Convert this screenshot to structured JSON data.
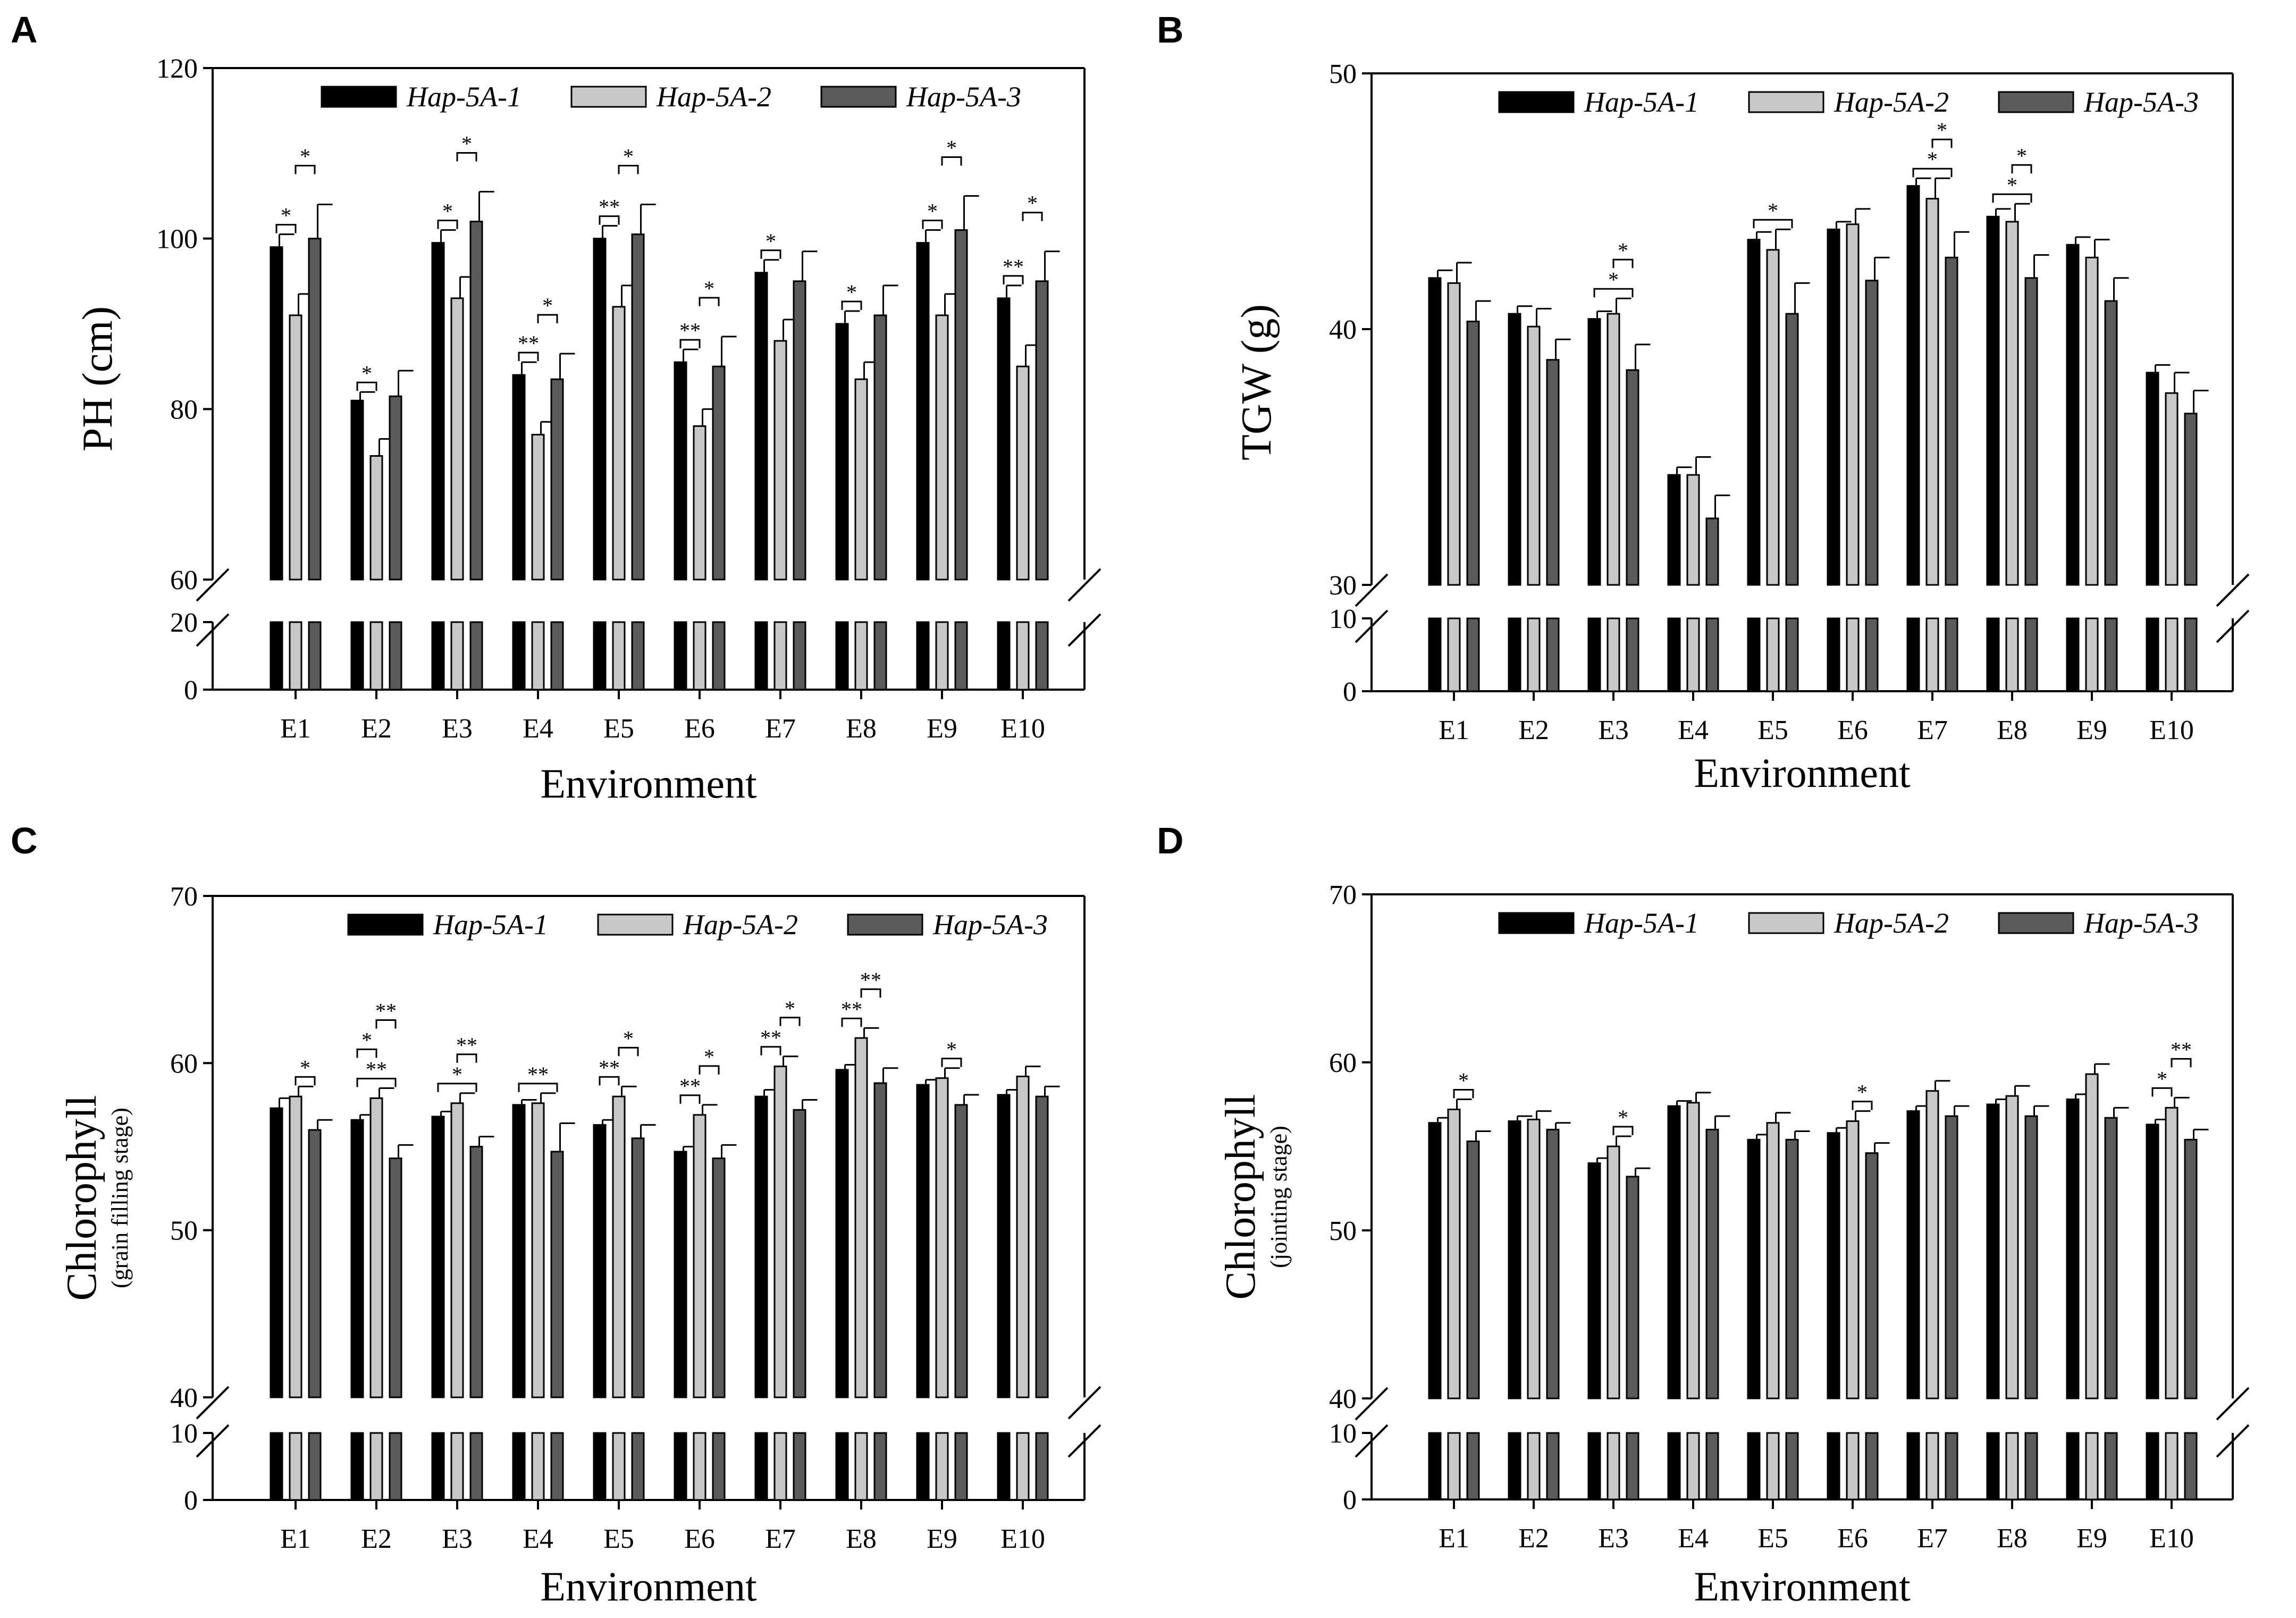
{
  "colors": {
    "hap1": "#000000",
    "hap2": "#c8c8c8",
    "hap3": "#5a5a5a"
  },
  "chart_data": [
    {
      "panel": "A",
      "type": "bar",
      "ylabel": "PH (cm)",
      "ylabel_sub": "",
      "xlabel": "Environment",
      "lower_ticks": [
        "0",
        "20"
      ],
      "upper_ticks": [
        "60",
        "80",
        "100",
        "120"
      ],
      "break_value": 60,
      "break_low": 20,
      "ylim": [
        60,
        120
      ],
      "tick_step": 20,
      "legend": [
        "Hap-5A-1",
        "Hap-5A-2",
        "Hap-5A-3"
      ],
      "legend_pos": "top-right",
      "categories": [
        "E1",
        "E2",
        "E3",
        "E4",
        "E5",
        "E6",
        "E7",
        "E8",
        "E9",
        "E10"
      ],
      "series": [
        {
          "name": "Hap-5A-1",
          "values": [
            99,
            81,
            99.5,
            84,
            100,
            85.5,
            96,
            90,
            99.5,
            93
          ],
          "errors": [
            1.5,
            1,
            1.5,
            1.5,
            1.5,
            1.5,
            1.5,
            1.5,
            1.5,
            1.5
          ]
        },
        {
          "name": "Hap-5A-2",
          "values": [
            91,
            74.5,
            93,
            77,
            92,
            78,
            88,
            83.5,
            91,
            85
          ],
          "errors": [
            2.5,
            2,
            2.5,
            1.5,
            2.5,
            2,
            2.5,
            2,
            2.5,
            2.5
          ]
        },
        {
          "name": "Hap-5A-3",
          "values": [
            100,
            81.5,
            102,
            83.5,
            100.5,
            85,
            95,
            91,
            101,
            95
          ],
          "errors": [
            4,
            3,
            3.5,
            3,
            3.5,
            3.5,
            3.5,
            3.5,
            4,
            3.5
          ]
        }
      ],
      "sig": [
        {
          "cat": 0,
          "a": 0,
          "b": 1,
          "label": "*"
        },
        {
          "cat": 0,
          "a": 1,
          "b": 2,
          "label": "*"
        },
        {
          "cat": 1,
          "a": 0,
          "b": 1,
          "label": "*"
        },
        {
          "cat": 2,
          "a": 0,
          "b": 1,
          "label": "*"
        },
        {
          "cat": 2,
          "a": 1,
          "b": 2,
          "label": "*"
        },
        {
          "cat": 3,
          "a": 0,
          "b": 1,
          "label": "**"
        },
        {
          "cat": 3,
          "a": 1,
          "b": 2,
          "label": "*"
        },
        {
          "cat": 4,
          "a": 0,
          "b": 1,
          "label": "**"
        },
        {
          "cat": 4,
          "a": 1,
          "b": 2,
          "label": "*"
        },
        {
          "cat": 5,
          "a": 0,
          "b": 1,
          "label": "**"
        },
        {
          "cat": 5,
          "a": 1,
          "b": 2,
          "label": "*"
        },
        {
          "cat": 6,
          "a": 0,
          "b": 1,
          "label": "*"
        },
        {
          "cat": 7,
          "a": 0,
          "b": 1,
          "label": "*"
        },
        {
          "cat": 8,
          "a": 0,
          "b": 1,
          "label": "*"
        },
        {
          "cat": 8,
          "a": 1,
          "b": 2,
          "label": "*"
        },
        {
          "cat": 9,
          "a": 0,
          "b": 1,
          "label": "**"
        },
        {
          "cat": 9,
          "a": 1,
          "b": 2,
          "label": "*"
        }
      ]
    },
    {
      "panel": "B",
      "type": "bar",
      "ylabel": "TGW (g)",
      "ylabel_sub": "",
      "xlabel": "Environment",
      "lower_ticks": [
        "0",
        "10"
      ],
      "upper_ticks": [
        "30",
        "40",
        "50"
      ],
      "break_value": 30,
      "break_low": 10,
      "ylim": [
        30,
        50
      ],
      "tick_step": 10,
      "legend": [
        "Hap-5A-1",
        "Hap-5A-2",
        "Hap-5A-3"
      ],
      "legend_pos": "top-right",
      "categories": [
        "E1",
        "E2",
        "E3",
        "E4",
        "E5",
        "E6",
        "E7",
        "E8",
        "E9",
        "E10"
      ],
      "series": [
        {
          "name": "Hap-5A-1",
          "values": [
            42,
            40.6,
            40.4,
            34.3,
            43.5,
            43.9,
            45.6,
            44.4,
            43.3,
            38.3
          ],
          "errors": [
            0.3,
            0.3,
            0.3,
            0.3,
            0.3,
            0.3,
            0.3,
            0.3,
            0.3,
            0.3
          ]
        },
        {
          "name": "Hap-5A-2",
          "values": [
            41.8,
            40.1,
            40.6,
            34.3,
            43.1,
            44.1,
            45.1,
            44.2,
            42.8,
            37.5
          ],
          "errors": [
            0.8,
            0.7,
            0.6,
            0.7,
            0.8,
            0.6,
            0.8,
            0.7,
            0.7,
            0.8
          ]
        },
        {
          "name": "Hap-5A-3",
          "values": [
            40.3,
            38.8,
            38.4,
            32.6,
            40.6,
            41.9,
            42.8,
            42,
            41.1,
            36.7
          ],
          "errors": [
            0.8,
            0.8,
            1,
            0.9,
            1.2,
            0.9,
            1,
            0.9,
            0.9,
            0.9
          ]
        }
      ],
      "sig": [
        {
          "cat": 2,
          "a": 0,
          "b": 2,
          "label": "*"
        },
        {
          "cat": 2,
          "a": 1,
          "b": 2,
          "label": "*"
        },
        {
          "cat": 4,
          "a": 0,
          "b": 2,
          "label": "*"
        },
        {
          "cat": 6,
          "a": 0,
          "b": 2,
          "label": "*"
        },
        {
          "cat": 6,
          "a": 1,
          "b": 2,
          "label": "*"
        },
        {
          "cat": 7,
          "a": 0,
          "b": 2,
          "label": "*"
        },
        {
          "cat": 7,
          "a": 1,
          "b": 2,
          "label": "*"
        }
      ]
    },
    {
      "panel": "C",
      "type": "bar",
      "ylabel": "Chlorophyll",
      "ylabel_sub": "(grain filling stage)",
      "xlabel": "Environment",
      "lower_ticks": [
        "0",
        "10"
      ],
      "upper_ticks": [
        "40",
        "50",
        "60",
        "70"
      ],
      "break_value": 40,
      "break_low": 10,
      "ylim": [
        40,
        70
      ],
      "tick_step": 10,
      "legend": [
        "Hap-5A-1",
        "Hap-5A-2",
        "Hap-5A-3"
      ],
      "legend_pos": "top-right",
      "categories": [
        "E1",
        "E2",
        "E3",
        "E4",
        "E5",
        "E6",
        "E7",
        "E8",
        "E9",
        "E10"
      ],
      "series": [
        {
          "name": "Hap-5A-1",
          "values": [
            57.3,
            56.6,
            56.8,
            57.5,
            56.3,
            54.7,
            58,
            59.6,
            58.7,
            58.1
          ],
          "errors": [
            0.6,
            0.3,
            0.3,
            0.3,
            0.3,
            0.3,
            0.4,
            0.3,
            0.3,
            0.3
          ]
        },
        {
          "name": "Hap-5A-2",
          "values": [
            58,
            57.9,
            57.6,
            57.6,
            58,
            56.9,
            59.8,
            61.5,
            59.1,
            59.2
          ],
          "errors": [
            0.6,
            0.6,
            0.6,
            0.6,
            0.6,
            0.6,
            0.6,
            0.6,
            0.6,
            0.6
          ]
        },
        {
          "name": "Hap-5A-3",
          "values": [
            56,
            54.3,
            55,
            54.7,
            55.5,
            54.3,
            57.2,
            58.8,
            57.5,
            58
          ],
          "errors": [
            0.6,
            0.8,
            0.6,
            1.7,
            0.8,
            0.8,
            0.6,
            0.9,
            0.6,
            0.6
          ]
        }
      ],
      "sig": [
        {
          "cat": 0,
          "a": 1,
          "b": 2,
          "label": "*"
        },
        {
          "cat": 1,
          "a": 0,
          "b": 2,
          "label": "**"
        },
        {
          "cat": 1,
          "a": 0,
          "b": 1,
          "label": "*"
        },
        {
          "cat": 1,
          "a": 1,
          "b": 2,
          "label": "**"
        },
        {
          "cat": 2,
          "a": 0,
          "b": 2,
          "label": "*"
        },
        {
          "cat": 2,
          "a": 1,
          "b": 2,
          "label": "**"
        },
        {
          "cat": 3,
          "a": 0,
          "b": 2,
          "label": "**"
        },
        {
          "cat": 4,
          "a": 0,
          "b": 1,
          "label": "**"
        },
        {
          "cat": 4,
          "a": 1,
          "b": 2,
          "label": "*"
        },
        {
          "cat": 5,
          "a": 0,
          "b": 1,
          "label": "**"
        },
        {
          "cat": 5,
          "a": 1,
          "b": 2,
          "label": "*"
        },
        {
          "cat": 6,
          "a": 0,
          "b": 1,
          "label": "**"
        },
        {
          "cat": 6,
          "a": 1,
          "b": 2,
          "label": "*"
        },
        {
          "cat": 7,
          "a": 0,
          "b": 1,
          "label": "**"
        },
        {
          "cat": 7,
          "a": 1,
          "b": 2,
          "label": "**"
        },
        {
          "cat": 8,
          "a": 1,
          "b": 2,
          "label": "*"
        }
      ]
    },
    {
      "panel": "D",
      "type": "bar",
      "ylabel": "Chlorophyll",
      "ylabel_sub": "(jointing stage)",
      "xlabel": "Environment",
      "lower_ticks": [
        "0",
        "10"
      ],
      "upper_ticks": [
        "40",
        "50",
        "60",
        "70"
      ],
      "break_value": 40,
      "break_low": 10,
      "ylim": [
        40,
        70
      ],
      "tick_step": 10,
      "legend": [
        "Hap-5A-1",
        "Hap-5A-2",
        "Hap-5A-3"
      ],
      "legend_pos": "top-right",
      "categories": [
        "E1",
        "E2",
        "E3",
        "E4",
        "E5",
        "E6",
        "E7",
        "E8",
        "E9",
        "E10"
      ],
      "series": [
        {
          "name": "Hap-5A-1",
          "values": [
            56.4,
            56.5,
            54,
            57.4,
            55.4,
            55.8,
            57.1,
            57.5,
            57.8,
            56.3
          ],
          "errors": [
            0.3,
            0.3,
            0.3,
            0.3,
            0.3,
            0.3,
            0.3,
            0.3,
            0.3,
            0.3
          ]
        },
        {
          "name": "Hap-5A-2",
          "values": [
            57.2,
            56.6,
            55,
            57.6,
            56.4,
            56.5,
            58.3,
            58,
            59.3,
            57.3
          ],
          "errors": [
            0.6,
            0.5,
            0.6,
            0.6,
            0.6,
            0.6,
            0.6,
            0.6,
            0.6,
            0.6
          ]
        },
        {
          "name": "Hap-5A-3",
          "values": [
            55.3,
            56,
            53.2,
            56,
            55.4,
            54.6,
            56.8,
            56.8,
            56.7,
            55.4
          ],
          "errors": [
            0.6,
            0.4,
            0.5,
            0.8,
            0.5,
            0.6,
            0.6,
            0.6,
            0.6,
            0.6
          ]
        }
      ],
      "sig": [
        {
          "cat": 0,
          "a": 1,
          "b": 2,
          "label": "*"
        },
        {
          "cat": 2,
          "a": 1,
          "b": 2,
          "label": "*"
        },
        {
          "cat": 5,
          "a": 1,
          "b": 2,
          "label": "*"
        },
        {
          "cat": 9,
          "a": 0,
          "b": 1,
          "label": "*"
        },
        {
          "cat": 9,
          "a": 1,
          "b": 2,
          "label": "**"
        }
      ]
    }
  ]
}
